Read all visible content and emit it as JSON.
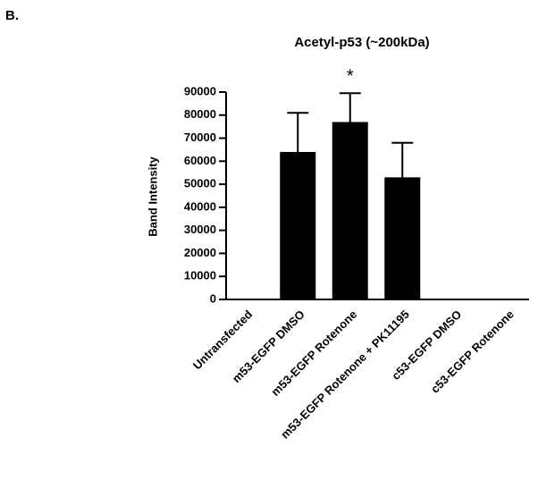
{
  "chart_data": {
    "type": "bar",
    "panel_label": "B.",
    "title": "Acetyl-p53 (~200kDa)",
    "y_label": "Band Intensity",
    "annotation": "*",
    "categories": [
      "Untransfected",
      "m53-EGFP DMSO",
      "m53-EGFP Rotenone",
      "m53-EGFP Rotenone + PK11195",
      "c53-EGFP DMSO",
      "c53-EGFP Rotenone"
    ],
    "values": [
      0,
      64000,
      77000,
      53000,
      0,
      0
    ],
    "errors": [
      0,
      17000,
      12500,
      15000,
      0,
      0
    ],
    "color": "#000000",
    "ylim": [
      0,
      90000
    ],
    "yticks": [
      0,
      10000,
      20000,
      30000,
      40000,
      50000,
      60000,
      70000,
      80000,
      90000
    ]
  }
}
